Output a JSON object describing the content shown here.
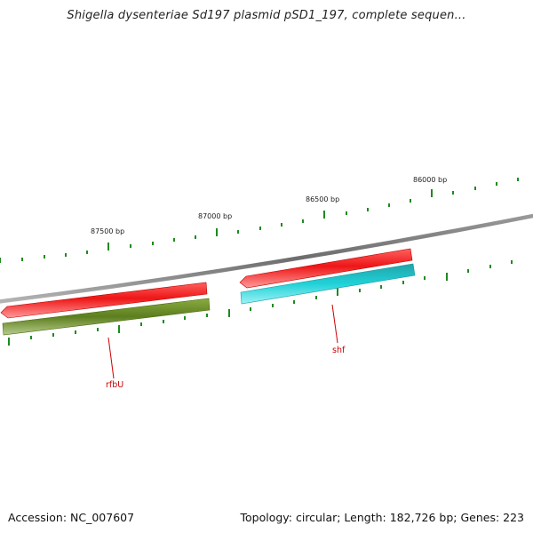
{
  "title": "Shigella dysenteriae Sd197 plasmid pSD1_197, complete sequen...",
  "footer": {
    "accession": "Accession: NC_007607",
    "summary": "Topology: circular; Length: 182,726 bp; Genes: 223"
  },
  "ticks": [
    {
      "label": "87500 bp"
    },
    {
      "label": "87000 bp"
    },
    {
      "label": "86500 bp"
    },
    {
      "label": "86000 bp"
    }
  ],
  "genes": [
    {
      "label": "rfbU",
      "color": "#e8141a",
      "strand": "reverse"
    },
    {
      "label": "shf",
      "color": "#e8141a",
      "strand": "reverse"
    }
  ],
  "colors": {
    "backbone": "#7a7a7a",
    "tick": "#1f8a1f",
    "cds_red": "#e8141a",
    "cds_green": "#6b8e23",
    "cds_cyan": "#1ecfd6",
    "label": "#cc0000"
  }
}
